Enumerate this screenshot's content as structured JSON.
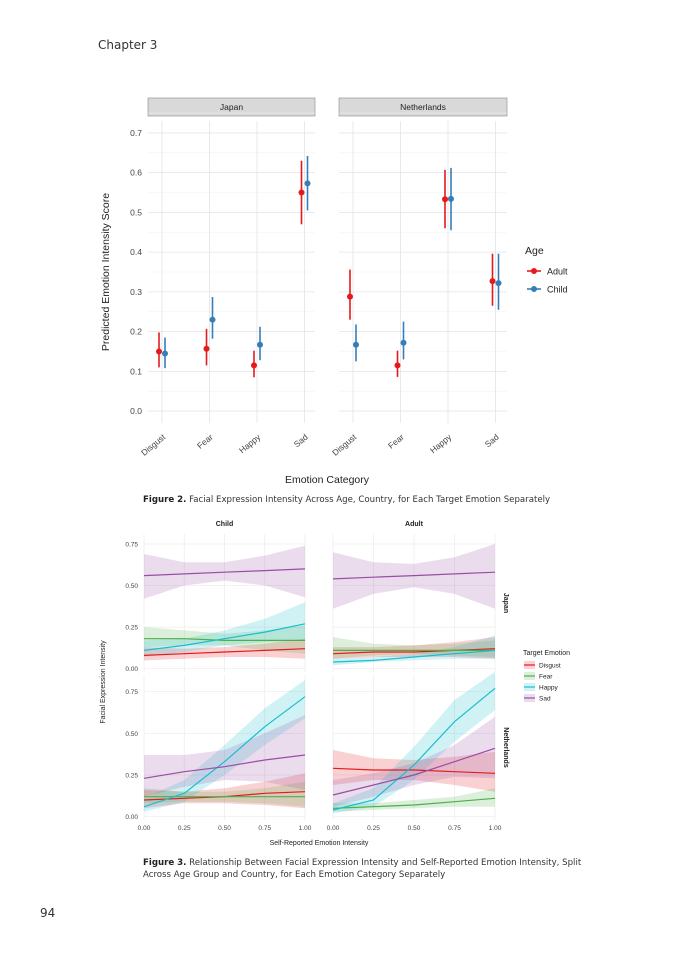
{
  "page": {
    "running_head": "Chapter 3",
    "page_number": "94",
    "figure2_caption": {
      "label": "Figure 2.",
      "text": "Facial Expression Intensity Across Age, Country, for Each Target Emotion Separately"
    },
    "figure3_caption": {
      "label": "Figure 3.",
      "text": "Relationship Between Facial Expression Intensity and Self-Reported Emotion Intensity, Split Across Age Group and Country, for Each Emotion Category Separately"
    }
  },
  "chart_data": [
    {
      "type": "scatter",
      "panels": [
        "Japan",
        "Netherlands"
      ],
      "categories": [
        "Disgust",
        "Fear",
        "Happy",
        "Sad"
      ],
      "xlabel": "Emotion Category",
      "ylabel": "Predicted Emotion Intensity Score",
      "ylim": [
        -0.03,
        0.73
      ],
      "yticks": [
        0.0,
        0.1,
        0.2,
        0.3,
        0.4,
        0.5,
        0.6,
        0.7
      ],
      "ytick_labels": [
        "0.0",
        "0.1",
        "0.2",
        "0.3",
        "0.4",
        "0.5",
        "0.6",
        "0.7"
      ],
      "legend": {
        "title": "Age",
        "position": "right"
      },
      "series": [
        {
          "name": "Adult",
          "color": "#e41a1c",
          "points": {
            "Japan": [
              {
                "est": 0.15,
                "lo": 0.11,
                "hi": 0.198
              },
              {
                "est": 0.157,
                "lo": 0.115,
                "hi": 0.207
              },
              {
                "est": 0.115,
                "lo": 0.085,
                "hi": 0.152
              },
              {
                "est": 0.55,
                "lo": 0.47,
                "hi": 0.63
              }
            ],
            "Netherlands": [
              {
                "est": 0.288,
                "lo": 0.23,
                "hi": 0.356
              },
              {
                "est": 0.115,
                "lo": 0.086,
                "hi": 0.152
              },
              {
                "est": 0.533,
                "lo": 0.46,
                "hi": 0.607
              },
              {
                "est": 0.327,
                "lo": 0.265,
                "hi": 0.396
              }
            ]
          }
        },
        {
          "name": "Child",
          "color": "#377eb8",
          "points": {
            "Japan": [
              {
                "est": 0.145,
                "lo": 0.108,
                "hi": 0.185
              },
              {
                "est": 0.23,
                "lo": 0.182,
                "hi": 0.287
              },
              {
                "est": 0.167,
                "lo": 0.128,
                "hi": 0.212
              },
              {
                "est": 0.573,
                "lo": 0.505,
                "hi": 0.642
              }
            ],
            "Netherlands": [
              {
                "est": 0.167,
                "lo": 0.125,
                "hi": 0.218
              },
              {
                "est": 0.172,
                "lo": 0.13,
                "hi": 0.225
              },
              {
                "est": 0.534,
                "lo": 0.455,
                "hi": 0.612
              },
              {
                "est": 0.322,
                "lo": 0.255,
                "hi": 0.396
              }
            ]
          }
        }
      ]
    },
    {
      "type": "line",
      "column_panels": [
        "Child",
        "Adult"
      ],
      "row_panels": [
        "Japan",
        "Netherlands"
      ],
      "xlabel": "Self-Reported Emotion Intensity",
      "ylabel": "Facial Expression Intensity",
      "xlim": [
        0,
        1
      ],
      "xticks": [
        0.0,
        0.25,
        0.5,
        0.75,
        1.0
      ],
      "xtick_labels": [
        "0.00",
        "0.25",
        "0.50",
        "0.75",
        "1.00"
      ],
      "ylims": {
        "Japan": [
          -0.02,
          0.81
        ],
        "Netherlands": [
          -0.02,
          0.85
        ]
      },
      "yticks": {
        "Japan": [
          0,
          0.25,
          0.5,
          0.75
        ],
        "Netherlands": [
          0,
          0.25,
          0.5,
          0.75
        ]
      },
      "ytick_labels": [
        "0.00",
        "0.25",
        "0.50",
        "0.75"
      ],
      "legend": {
        "title": "Target Emotion",
        "position": "right"
      },
      "x": [
        0,
        0.25,
        0.5,
        0.75,
        1.0
      ],
      "series": [
        {
          "name": "Disgust",
          "color": "#e41a1c",
          "panels": {
            "Japan|Child": {
              "y": [
                0.08,
                0.09,
                0.1,
                0.11,
                0.12
              ],
              "lo": [
                0.05,
                0.06,
                0.07,
                0.07,
                0.06
              ],
              "hi": [
                0.13,
                0.12,
                0.13,
                0.15,
                0.18
              ]
            },
            "Japan|Adult": {
              "y": [
                0.09,
                0.1,
                0.1,
                0.11,
                0.12
              ],
              "lo": [
                0.06,
                0.07,
                0.07,
                0.07,
                0.06
              ],
              "hi": [
                0.13,
                0.13,
                0.14,
                0.16,
                0.19
              ]
            },
            "Netherlands|Child": {
              "y": [
                0.1,
                0.11,
                0.12,
                0.14,
                0.15
              ],
              "lo": [
                0.05,
                0.08,
                0.08,
                0.07,
                0.05
              ],
              "hi": [
                0.16,
                0.15,
                0.17,
                0.21,
                0.26
              ]
            },
            "Netherlands|Adult": {
              "y": [
                0.29,
                0.28,
                0.28,
                0.27,
                0.26
              ],
              "lo": [
                0.19,
                0.22,
                0.22,
                0.19,
                0.15
              ],
              "hi": [
                0.4,
                0.35,
                0.34,
                0.36,
                0.39
              ]
            }
          }
        },
        {
          "name": "Fear",
          "color": "#4daf4a",
          "panels": {
            "Japan|Child": {
              "y": [
                0.18,
                0.18,
                0.17,
                0.17,
                0.17
              ],
              "lo": [
                0.13,
                0.14,
                0.14,
                0.11,
                0.09
              ],
              "hi": [
                0.25,
                0.23,
                0.21,
                0.23,
                0.26
              ]
            },
            "Japan|Adult": {
              "y": [
                0.11,
                0.11,
                0.11,
                0.11,
                0.11
              ],
              "lo": [
                0.06,
                0.08,
                0.09,
                0.08,
                0.07
              ],
              "hi": [
                0.19,
                0.15,
                0.14,
                0.15,
                0.17
              ]
            },
            "Netherlands|Child": {
              "y": [
                0.12,
                0.12,
                0.12,
                0.12,
                0.12
              ],
              "lo": [
                0.08,
                0.09,
                0.09,
                0.08,
                0.06
              ],
              "hi": [
                0.17,
                0.15,
                0.15,
                0.17,
                0.21
              ]
            },
            "Netherlands|Adult": {
              "y": [
                0.05,
                0.06,
                0.07,
                0.09,
                0.11
              ],
              "lo": [
                0.03,
                0.04,
                0.05,
                0.06,
                0.06
              ],
              "hi": [
                0.08,
                0.08,
                0.1,
                0.12,
                0.17
              ]
            }
          }
        },
        {
          "name": "Happy",
          "color": "#17becf",
          "panels": {
            "Japan|Child": {
              "y": [
                0.11,
                0.14,
                0.18,
                0.22,
                0.27
              ],
              "lo": [
                0.07,
                0.1,
                0.14,
                0.16,
                0.17
              ],
              "hi": [
                0.17,
                0.18,
                0.23,
                0.3,
                0.4
              ]
            },
            "Japan|Adult": {
              "y": [
                0.04,
                0.05,
                0.07,
                0.09,
                0.11
              ],
              "lo": [
                0.02,
                0.04,
                0.05,
                0.06,
                0.06
              ],
              "hi": [
                0.06,
                0.07,
                0.09,
                0.13,
                0.2
              ]
            },
            "Netherlands|Child": {
              "y": [
                0.06,
                0.14,
                0.33,
                0.54,
                0.72
              ],
              "lo": [
                0.03,
                0.09,
                0.25,
                0.43,
                0.59
              ],
              "hi": [
                0.11,
                0.22,
                0.43,
                0.65,
                0.82
              ]
            },
            "Netherlands|Adult": {
              "y": [
                0.04,
                0.1,
                0.31,
                0.57,
                0.77
              ],
              "lo": [
                0.02,
                0.06,
                0.22,
                0.45,
                0.64
              ],
              "hi": [
                0.08,
                0.17,
                0.42,
                0.7,
                0.87
              ]
            }
          }
        },
        {
          "name": "Sad",
          "color": "#984ea3",
          "panels": {
            "Japan|Child": {
              "y": [
                0.56,
                0.57,
                0.58,
                0.59,
                0.6
              ],
              "lo": [
                0.42,
                0.5,
                0.53,
                0.5,
                0.43
              ],
              "hi": [
                0.69,
                0.64,
                0.64,
                0.68,
                0.74
              ]
            },
            "Japan|Adult": {
              "y": [
                0.54,
                0.55,
                0.56,
                0.57,
                0.58
              ],
              "lo": [
                0.36,
                0.45,
                0.49,
                0.45,
                0.36
              ],
              "hi": [
                0.7,
                0.64,
                0.63,
                0.67,
                0.75
              ]
            },
            "Netherlands|Child": {
              "y": [
                0.23,
                0.27,
                0.3,
                0.34,
                0.37
              ],
              "lo": [
                0.12,
                0.18,
                0.22,
                0.21,
                0.16
              ],
              "hi": [
                0.37,
                0.37,
                0.4,
                0.5,
                0.61
              ]
            },
            "Netherlands|Adult": {
              "y": [
                0.13,
                0.19,
                0.25,
                0.33,
                0.41
              ],
              "lo": [
                0.06,
                0.12,
                0.19,
                0.24,
                0.23
              ],
              "hi": [
                0.22,
                0.26,
                0.32,
                0.43,
                0.6
              ]
            }
          }
        }
      ]
    }
  ]
}
